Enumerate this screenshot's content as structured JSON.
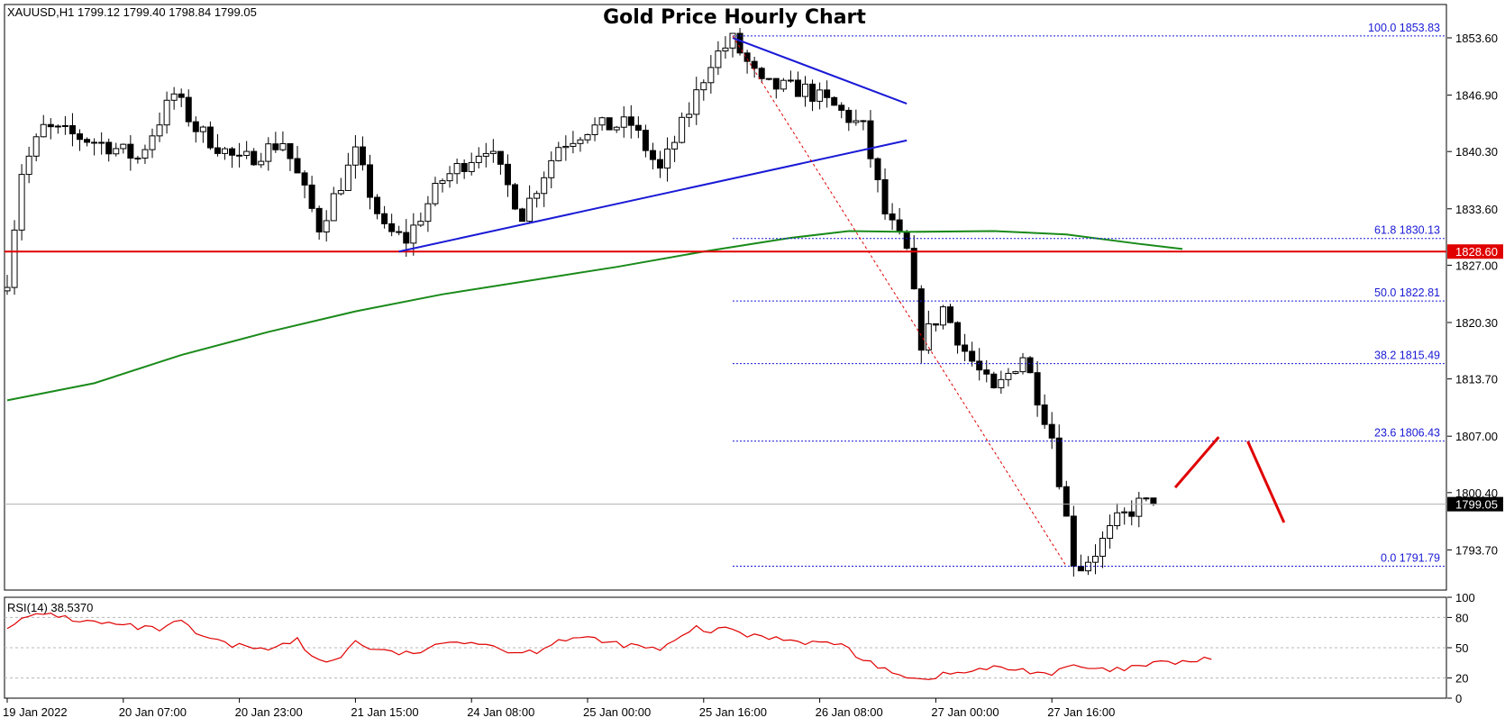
{
  "header": {
    "symbol_info": "XAUUSD,H1  1799.12 1799.40 1798.84 1799.05",
    "title": "Gold Price Hourly Chart"
  },
  "colors": {
    "bull_body": "#ffffff",
    "bear_body": "#000000",
    "candle_outline": "#000000",
    "ma": "#1a8a1a",
    "support_line": "#e00000",
    "trend": "#1a1ad6",
    "fib": "#1a1ad6",
    "rsi": "#e00000",
    "projection": "#e00000",
    "current_tag": "#000000",
    "support_tag": "#e00000"
  },
  "chart_data": {
    "type": "candlestick",
    "symbol": "XAUUSD",
    "timeframe": "H1",
    "ohlc_last": {
      "open": 1799.12,
      "high": 1799.4,
      "low": 1798.84,
      "close": 1799.05
    },
    "price_axis": {
      "ylim": [
        1789.0,
        1857.5
      ],
      "ticks": [
        "1853.60",
        "1846.90",
        "1840.30",
        "1833.60",
        "1827.00",
        "1820.30",
        "1813.70",
        "1807.00",
        "1800.40",
        "1793.70"
      ]
    },
    "time_axis": {
      "labels": [
        "19 Jan 2022",
        "20 Jan 07:00",
        "20 Jan 23:00",
        "21 Jan 15:00",
        "24 Jan 08:00",
        "25 Jan 00:00",
        "25 Jan 16:00",
        "26 Jan 08:00",
        "27 Jan 00:00",
        "27 Jan 16:00"
      ],
      "label_bar_index": [
        0,
        16,
        32,
        48,
        64,
        80,
        96,
        112,
        128,
        144
      ]
    },
    "bars_total": 158,
    "key_path": [
      [
        0,
        1825.5
      ],
      [
        2,
        1838.0
      ],
      [
        5,
        1843.0
      ],
      [
        10,
        1842.0
      ],
      [
        14,
        1841.0
      ],
      [
        18,
        1839.5
      ],
      [
        23,
        1847.0
      ],
      [
        26,
        1843.0
      ],
      [
        32,
        1839.0
      ],
      [
        38,
        1841.5
      ],
      [
        43,
        1831.5
      ],
      [
        48,
        1840.0
      ],
      [
        52,
        1831.0
      ],
      [
        55,
        1830.0
      ],
      [
        60,
        1837.0
      ],
      [
        66,
        1841.0
      ],
      [
        71,
        1833.0
      ],
      [
        76,
        1841.0
      ],
      [
        80,
        1843.0
      ],
      [
        86,
        1843.5
      ],
      [
        90,
        1838.0
      ],
      [
        94,
        1845.0
      ],
      [
        97,
        1851.0
      ],
      [
        100,
        1853.3
      ],
      [
        104,
        1848.0
      ],
      [
        110,
        1847.5
      ],
      [
        114,
        1845.5
      ],
      [
        118,
        1843.0
      ],
      [
        121,
        1833.0
      ],
      [
        124,
        1828.5
      ],
      [
        126,
        1818.0
      ],
      [
        129,
        1822.0
      ],
      [
        132,
        1817.0
      ],
      [
        136,
        1812.0
      ],
      [
        140,
        1816.5
      ],
      [
        144,
        1807.0
      ],
      [
        147,
        1792.5
      ],
      [
        148,
        1791.8
      ],
      [
        150,
        1793.5
      ],
      [
        153,
        1797.0
      ],
      [
        156,
        1799.05
      ]
    ],
    "ma_points": [
      [
        0,
        1811.2
      ],
      [
        12,
        1813.2
      ],
      [
        24,
        1816.5
      ],
      [
        36,
        1819.2
      ],
      [
        48,
        1821.6
      ],
      [
        60,
        1823.6
      ],
      [
        72,
        1825.2
      ],
      [
        84,
        1826.8
      ],
      [
        96,
        1828.6
      ],
      [
        108,
        1830.2
      ],
      [
        116,
        1831.0
      ],
      [
        124,
        1830.9
      ],
      [
        136,
        1831.0
      ],
      [
        146,
        1830.6
      ],
      [
        156,
        1829.5
      ],
      [
        162,
        1828.9
      ]
    ],
    "support_level": {
      "price": 1828.6,
      "label": "1828.60"
    },
    "current_price": {
      "price": 1799.05,
      "label": "1799.05"
    },
    "trendlines": [
      {
        "from": [
          54,
          1828.6
        ],
        "to": [
          124,
          1841.6
        ]
      },
      {
        "from": [
          100,
          1853.6
        ],
        "to": [
          124,
          1845.9
        ]
      }
    ],
    "fib_diagonal": {
      "from": [
        100,
        1853.83
      ],
      "to": [
        146,
        1791.79
      ]
    },
    "fibonacci": [
      {
        "label": "100.0 1853.83",
        "price": 1853.83
      },
      {
        "label": "61.8 1830.13",
        "price": 1830.13
      },
      {
        "label": "50.0 1822.81",
        "price": 1822.81
      },
      {
        "label": "38.2 1815.49",
        "price": 1815.49
      },
      {
        "label": "23.6 1806.43",
        "price": 1806.43
      },
      {
        "label": "0.0 1791.79",
        "price": 1791.79
      }
    ],
    "projection": [
      {
        "from": [
          161,
          1801.0
        ],
        "to": [
          167,
          1806.9
        ]
      },
      {
        "from": [
          171,
          1806.4
        ],
        "to": [
          176,
          1796.9
        ]
      }
    ],
    "rsi": {
      "label": "RSI(14) 38.5370",
      "period": 14,
      "value": 38.537,
      "ylim": [
        0,
        100
      ],
      "ticks": [
        "100",
        "80",
        "50",
        "20",
        "0"
      ],
      "levels": [
        80,
        50,
        20
      ],
      "values": [
        [
          0,
          72
        ],
        [
          3,
          80
        ],
        [
          6,
          84
        ],
        [
          9,
          78
        ],
        [
          12,
          75
        ],
        [
          15,
          73
        ],
        [
          18,
          70
        ],
        [
          21,
          68
        ],
        [
          24,
          76
        ],
        [
          26,
          64
        ],
        [
          28,
          58
        ],
        [
          31,
          52
        ],
        [
          34,
          51
        ],
        [
          37,
          50
        ],
        [
          40,
          58
        ],
        [
          42,
          40
        ],
        [
          44,
          36
        ],
        [
          46,
          42
        ],
        [
          48,
          56
        ],
        [
          50,
          50
        ],
        [
          52,
          46
        ],
        [
          55,
          44
        ],
        [
          58,
          48
        ],
        [
          62,
          58
        ],
        [
          66,
          54
        ],
        [
          70,
          45
        ],
        [
          73,
          47
        ],
        [
          76,
          58
        ],
        [
          79,
          60
        ],
        [
          82,
          56
        ],
        [
          86,
          52
        ],
        [
          90,
          48
        ],
        [
          93,
          60
        ],
        [
          95,
          70
        ],
        [
          97,
          66
        ],
        [
          100,
          69
        ],
        [
          102,
          62
        ],
        [
          106,
          60
        ],
        [
          110,
          56
        ],
        [
          114,
          54
        ],
        [
          116,
          50
        ],
        [
          118,
          36
        ],
        [
          121,
          30
        ],
        [
          124,
          22
        ],
        [
          126,
          18
        ],
        [
          128,
          22
        ],
        [
          132,
          26
        ],
        [
          136,
          30
        ],
        [
          140,
          28
        ],
        [
          144,
          24
        ],
        [
          147,
          32
        ],
        [
          150,
          28
        ],
        [
          152,
          27
        ],
        [
          155,
          30
        ],
        [
          158,
          34
        ],
        [
          162,
          36
        ],
        [
          166,
          38.5
        ]
      ]
    }
  }
}
